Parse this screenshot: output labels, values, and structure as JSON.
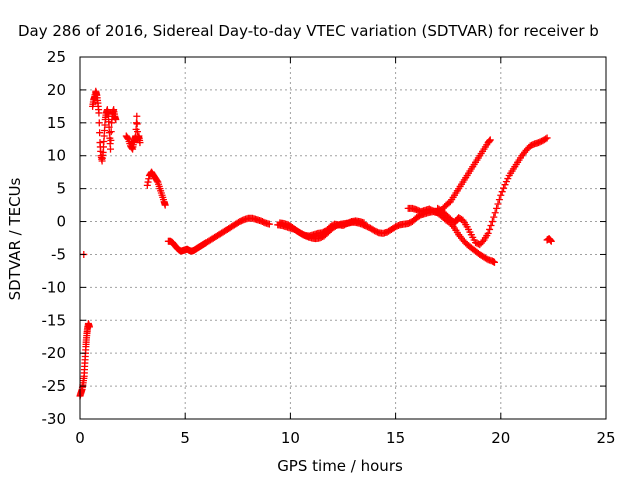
{
  "chart_data": {
    "type": "scatter",
    "title": "Day 286 of 2016, Sidereal Day-to-day VTEC variation (SDTVAR) for receiver b",
    "xlabel": "GPS time / hours",
    "ylabel": "SDTVAR / TECUs",
    "xlim": [
      0,
      25
    ],
    "ylim": [
      -30,
      25
    ],
    "xticks": [
      0,
      5,
      10,
      15,
      20,
      25
    ],
    "yticks": [
      -30,
      -25,
      -20,
      -15,
      -10,
      -5,
      0,
      5,
      10,
      15,
      20,
      25
    ],
    "grid": true,
    "legend": "none",
    "marker": "plus",
    "color": "#ff0000",
    "series": [
      {
        "values": [
          [
            0.0,
            -26.5
          ],
          [
            0.05,
            -26.0
          ],
          [
            0.1,
            -25.5
          ],
          [
            0.15,
            -24.5
          ],
          [
            0.2,
            -23.5
          ],
          [
            0.22,
            -22.0
          ],
          [
            0.25,
            -20.5
          ],
          [
            0.28,
            -19.0
          ],
          [
            0.3,
            -18.0
          ],
          [
            0.33,
            -17.0
          ],
          [
            0.36,
            -16.2
          ],
          [
            0.4,
            -15.5
          ],
          [
            0.45,
            -16.0
          ],
          [
            0.18,
            -5.0
          ],
          [
            0.6,
            17.5
          ],
          [
            0.65,
            18.5
          ],
          [
            0.7,
            19.0
          ],
          [
            0.75,
            19.8
          ],
          [
            0.8,
            19.2
          ],
          [
            0.85,
            18.0
          ],
          [
            0.9,
            16.5
          ],
          [
            0.95,
            12.0
          ],
          [
            1.0,
            10.0
          ],
          [
            1.05,
            9.2
          ],
          [
            1.1,
            10.5
          ],
          [
            1.15,
            13.0
          ],
          [
            1.2,
            15.5
          ],
          [
            1.25,
            16.5
          ],
          [
            1.3,
            17.0
          ],
          [
            1.35,
            16.0
          ],
          [
            1.4,
            13.5
          ],
          [
            1.45,
            11.0
          ],
          [
            1.5,
            15.0
          ],
          [
            1.55,
            16.5
          ],
          [
            1.6,
            17.0
          ],
          [
            1.65,
            16.0
          ],
          [
            1.7,
            15.5
          ],
          [
            2.2,
            13.0
          ],
          [
            2.3,
            12.5
          ],
          [
            2.4,
            11.5
          ],
          [
            2.5,
            11.0
          ],
          [
            2.55,
            12.0
          ],
          [
            2.6,
            12.5
          ],
          [
            2.65,
            13.0
          ],
          [
            2.7,
            16.0
          ],
          [
            2.75,
            12.5
          ],
          [
            2.8,
            13.0
          ],
          [
            2.85,
            12.0
          ],
          [
            3.2,
            5.5
          ],
          [
            3.3,
            7.0
          ],
          [
            3.4,
            7.5
          ],
          [
            3.5,
            7.0
          ],
          [
            3.6,
            6.5
          ],
          [
            3.7,
            6.0
          ],
          [
            3.8,
            5.0
          ],
          [
            3.9,
            4.0
          ],
          [
            4.0,
            3.0
          ],
          [
            4.05,
            2.5
          ],
          [
            4.2,
            -3.0
          ],
          [
            4.3,
            -3.0
          ],
          [
            4.4,
            -3.2
          ],
          [
            4.5,
            -3.6
          ],
          [
            4.6,
            -4.0
          ],
          [
            4.7,
            -4.3
          ],
          [
            4.8,
            -4.5
          ],
          [
            4.9,
            -4.4
          ],
          [
            5.0,
            -4.3
          ],
          [
            5.1,
            -4.2
          ],
          [
            5.2,
            -4.4
          ],
          [
            5.3,
            -4.5
          ],
          [
            5.4,
            -4.4
          ],
          [
            5.5,
            -4.2
          ],
          [
            5.6,
            -4.0
          ],
          [
            5.7,
            -3.8
          ],
          [
            5.8,
            -3.6
          ],
          [
            5.9,
            -3.4
          ],
          [
            6.0,
            -3.2
          ],
          [
            6.2,
            -2.8
          ],
          [
            6.4,
            -2.4
          ],
          [
            6.6,
            -2.0
          ],
          [
            6.8,
            -1.6
          ],
          [
            7.0,
            -1.2
          ],
          [
            7.2,
            -0.8
          ],
          [
            7.4,
            -0.4
          ],
          [
            7.6,
            0.0
          ],
          [
            7.8,
            0.3
          ],
          [
            8.0,
            0.5
          ],
          [
            8.2,
            0.5
          ],
          [
            8.4,
            0.3
          ],
          [
            8.6,
            0.1
          ],
          [
            8.8,
            -0.2
          ],
          [
            9.0,
            -0.4
          ],
          [
            9.4,
            -0.5
          ],
          [
            9.6,
            -0.6
          ],
          [
            9.8,
            -0.8
          ],
          [
            10.0,
            -1.0
          ],
          [
            10.2,
            -1.2
          ],
          [
            10.4,
            -1.6
          ],
          [
            10.6,
            -2.0
          ],
          [
            10.8,
            -2.3
          ],
          [
            11.0,
            -2.5
          ],
          [
            11.2,
            -2.6
          ],
          [
            11.4,
            -2.5
          ],
          [
            11.6,
            -2.2
          ],
          [
            11.8,
            -1.6
          ],
          [
            12.0,
            -1.0
          ],
          [
            12.2,
            -0.6
          ],
          [
            12.4,
            -0.4
          ],
          [
            12.6,
            -0.3
          ],
          [
            12.8,
            -0.2
          ],
          [
            13.0,
            -0.1
          ],
          [
            13.2,
            -0.2
          ],
          [
            13.4,
            -0.4
          ],
          [
            13.6,
            -0.7
          ],
          [
            13.8,
            -1.0
          ],
          [
            14.0,
            -1.4
          ],
          [
            14.2,
            -1.7
          ],
          [
            14.4,
            -1.8
          ],
          [
            14.6,
            -1.6
          ],
          [
            14.8,
            -1.2
          ],
          [
            15.0,
            -0.8
          ],
          [
            15.2,
            -0.5
          ],
          [
            15.4,
            -0.4
          ],
          [
            15.6,
            -0.3
          ],
          [
            15.8,
            0.0
          ],
          [
            16.0,
            0.6
          ],
          [
            16.2,
            1.0
          ],
          [
            16.4,
            1.2
          ],
          [
            16.6,
            1.4
          ],
          [
            16.8,
            1.5
          ],
          [
            17.0,
            1.3
          ],
          [
            17.2,
            0.8
          ],
          [
            17.4,
            0.2
          ],
          [
            17.6,
            -0.2
          ],
          [
            17.8,
            -1.0
          ],
          [
            18.0,
            -2.0
          ],
          [
            18.2,
            -2.8
          ],
          [
            18.4,
            -3.5
          ],
          [
            18.6,
            -4.0
          ],
          [
            18.8,
            -4.5
          ],
          [
            19.0,
            -5.0
          ],
          [
            19.2,
            -5.4
          ],
          [
            19.4,
            -5.8
          ],
          [
            19.6,
            -6.0
          ],
          [
            19.7,
            -6.2
          ],
          [
            9.5,
            -0.2
          ],
          [
            9.7,
            -0.3
          ],
          [
            9.9,
            -0.5
          ],
          [
            10.1,
            -0.9
          ],
          [
            10.3,
            -1.4
          ],
          [
            10.5,
            -1.8
          ],
          [
            10.7,
            -2.1
          ],
          [
            10.9,
            -2.2
          ],
          [
            11.1,
            -2.0
          ],
          [
            11.3,
            -1.8
          ],
          [
            11.5,
            -1.7
          ],
          [
            11.7,
            -1.4
          ],
          [
            11.9,
            -0.8
          ],
          [
            12.1,
            -0.4
          ],
          [
            12.3,
            -0.5
          ],
          [
            12.5,
            -0.6
          ],
          [
            12.7,
            -0.3
          ],
          [
            12.9,
            0.0
          ],
          [
            13.1,
            0.1
          ],
          [
            13.3,
            0.0
          ],
          [
            13.5,
            -0.2
          ],
          [
            15.6,
            2.0
          ],
          [
            15.8,
            2.0
          ],
          [
            16.0,
            1.8
          ],
          [
            16.2,
            1.5
          ],
          [
            16.4,
            1.7
          ],
          [
            16.6,
            1.9
          ],
          [
            16.8,
            1.6
          ],
          [
            17.0,
            1.4
          ],
          [
            17.2,
            1.8
          ],
          [
            17.4,
            2.5
          ],
          [
            17.6,
            3.0
          ],
          [
            17.8,
            4.0
          ],
          [
            18.0,
            5.0
          ],
          [
            18.2,
            6.0
          ],
          [
            18.4,
            7.0
          ],
          [
            18.6,
            8.0
          ],
          [
            18.8,
            9.0
          ],
          [
            19.0,
            10.0
          ],
          [
            19.2,
            11.0
          ],
          [
            19.4,
            12.0
          ],
          [
            19.5,
            12.4
          ],
          [
            17.0,
            2.0
          ],
          [
            17.2,
            1.6
          ],
          [
            17.4,
            1.0
          ],
          [
            17.6,
            0.4
          ],
          [
            17.8,
            -0.2
          ],
          [
            17.9,
            0.2
          ],
          [
            18.0,
            0.6
          ],
          [
            18.2,
            0.2
          ],
          [
            18.4,
            -0.8
          ],
          [
            18.6,
            -2.0
          ],
          [
            18.8,
            -3.2
          ],
          [
            19.0,
            -3.5
          ],
          [
            19.2,
            -2.8
          ],
          [
            19.4,
            -1.8
          ],
          [
            19.6,
            0.0
          ],
          [
            19.8,
            2.0
          ],
          [
            20.0,
            4.0
          ],
          [
            20.2,
            5.6
          ],
          [
            20.4,
            7.0
          ],
          [
            20.6,
            8.0
          ],
          [
            20.8,
            9.0
          ],
          [
            21.0,
            10.0
          ],
          [
            21.2,
            10.8
          ],
          [
            21.4,
            11.5
          ],
          [
            21.6,
            11.8
          ],
          [
            21.8,
            12.0
          ],
          [
            22.0,
            12.3
          ],
          [
            22.2,
            12.7
          ],
          [
            22.2,
            -2.8
          ],
          [
            22.3,
            -2.6
          ],
          [
            22.4,
            -3.0
          ]
        ]
      }
    ]
  }
}
